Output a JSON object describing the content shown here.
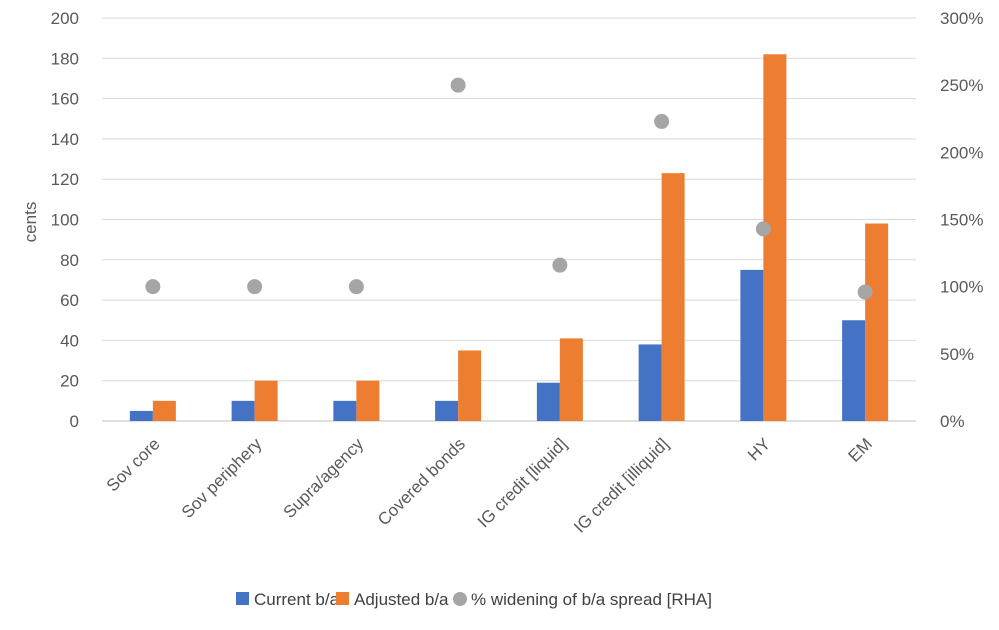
{
  "chart_data": {
    "type": "bar",
    "categories": [
      "Sov core",
      "Sov periphery",
      "Supra/agency",
      "Covered bonds",
      "IG credit [liquid]",
      "IG credit [illiquid]",
      "HY",
      "EM"
    ],
    "series": [
      {
        "name": "Current b/a",
        "kind": "bar",
        "axis": "left",
        "color": "#4472C4",
        "values": [
          5,
          10,
          10,
          10,
          19,
          38,
          75,
          50
        ]
      },
      {
        "name": "Adjusted b/a",
        "kind": "bar",
        "axis": "left",
        "color": "#ED7D31",
        "values": [
          10,
          20,
          20,
          35,
          41,
          123,
          182,
          98
        ]
      },
      {
        "name": "% widening of b/a spread [RHA]",
        "kind": "scatter",
        "axis": "right",
        "color": "#A5A5A5",
        "values": [
          100,
          100,
          100,
          250,
          116,
          223,
          143,
          96
        ]
      }
    ],
    "ylabel": "cents",
    "ylim": [
      0,
      200
    ],
    "y_ticks": [
      0,
      20,
      40,
      60,
      80,
      100,
      120,
      140,
      160,
      180,
      200
    ],
    "y2lim": [
      0,
      300
    ],
    "y2_ticks": [
      0,
      50,
      100,
      150,
      200,
      250,
      300
    ],
    "y2_tick_labels": [
      "0%",
      "50%",
      "100%",
      "150%",
      "200%",
      "250%",
      "300%"
    ],
    "grid": true,
    "legend_position": "bottom"
  }
}
